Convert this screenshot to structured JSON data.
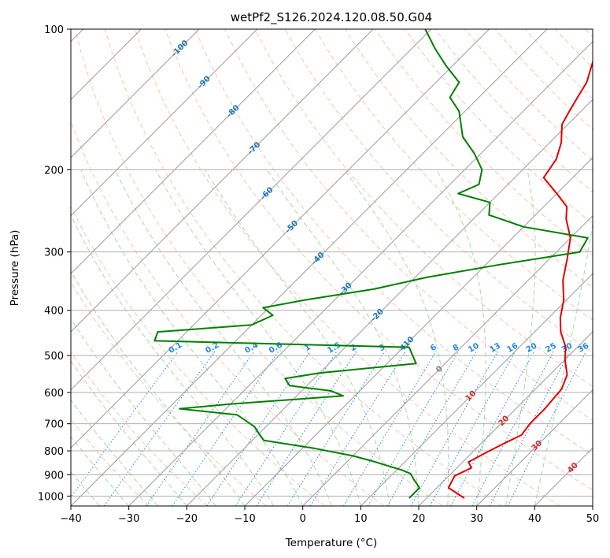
{
  "chart_data": {
    "type": "line",
    "title": "wetPf2_S126.2024.120.08.50.G04",
    "xlabel": "Temperature (°C)",
    "ylabel": "Pressure (hPa)",
    "xlim": [
      -40,
      50
    ],
    "ylim": [
      1050,
      100
    ],
    "y_scale": "log",
    "grid": true,
    "x_ticks": [
      -40,
      -30,
      -20,
      -10,
      0,
      10,
      20,
      30,
      40,
      50
    ],
    "y_ticks": [
      100,
      200,
      300,
      400,
      500,
      600,
      700,
      800,
      900,
      1000
    ],
    "series": [
      {
        "name": "",
        "color": "#e30000",
        "kind": "temperature",
        "points": [
          [
            26.5,
            1010
          ],
          [
            22,
            960
          ],
          [
            21,
            905
          ],
          [
            22.5,
            870
          ],
          [
            21,
            845
          ],
          [
            22.5,
            805
          ],
          [
            24,
            770
          ],
          [
            25.5,
            740
          ],
          [
            25,
            700
          ],
          [
            25,
            650
          ],
          [
            24.5,
            590
          ],
          [
            23,
            550
          ],
          [
            20,
            510
          ],
          [
            18,
            480
          ],
          [
            14.5,
            445
          ],
          [
            12,
            415
          ],
          [
            9.5,
            380
          ],
          [
            6,
            345
          ],
          [
            3,
            310
          ],
          [
            0,
            280
          ],
          [
            -4,
            255
          ],
          [
            -6,
            240
          ],
          [
            -10,
            225
          ],
          [
            -15,
            208
          ],
          [
            -16,
            190
          ],
          [
            -18,
            175
          ],
          [
            -21,
            160
          ],
          [
            -22,
            150
          ],
          [
            -23,
            140
          ],
          [
            -24,
            130
          ],
          [
            -27,
            115
          ],
          [
            -30,
            100
          ]
        ]
      },
      {
        "name": "",
        "color": "#008000",
        "kind": "dewpoint",
        "points": [
          [
            17,
            1010
          ],
          [
            17,
            960
          ],
          [
            14.5,
            920
          ],
          [
            13,
            895
          ],
          [
            11,
            880
          ],
          [
            4,
            840
          ],
          [
            0,
            820
          ],
          [
            -8,
            790
          ],
          [
            -18,
            760
          ],
          [
            -20,
            735
          ],
          [
            -22,
            710
          ],
          [
            -27,
            670
          ],
          [
            -38,
            650
          ],
          [
            -30,
            635
          ],
          [
            -12,
            610
          ],
          [
            -15,
            595
          ],
          [
            -23,
            580
          ],
          [
            -25,
            560
          ],
          [
            -20,
            545
          ],
          [
            -5,
            520
          ],
          [
            -9,
            480
          ],
          [
            -54,
            465
          ],
          [
            -55,
            445
          ],
          [
            -40,
            430
          ],
          [
            -38,
            410
          ],
          [
            -41,
            395
          ],
          [
            -35,
            380
          ],
          [
            -25,
            360
          ],
          [
            -18,
            340
          ],
          [
            -8,
            320
          ],
          [
            4,
            300
          ],
          [
            3,
            280
          ],
          [
            -10,
            265
          ],
          [
            -18,
            250
          ],
          [
            -20,
            235
          ],
          [
            -27,
            225
          ],
          [
            -25,
            215
          ],
          [
            -27,
            200
          ],
          [
            -31,
            185
          ],
          [
            -36,
            170
          ],
          [
            -41,
            150
          ],
          [
            -45,
            140
          ],
          [
            -46,
            130
          ],
          [
            -51,
            120
          ],
          [
            -56,
            110
          ],
          [
            -61,
            100
          ]
        ]
      }
    ],
    "isotherm_labels": [
      "-100",
      "-90",
      "-80",
      "-70",
      "-60",
      "-50",
      "-40",
      "-30",
      "-20",
      "-10",
      "0",
      "10",
      "20",
      "30",
      "40"
    ],
    "mixing_ratio_labels": [
      "0.1",
      "0.2",
      "0.4",
      "0.6",
      "1",
      "1.5",
      "2",
      "3",
      "4",
      "6",
      "8",
      "10",
      "13",
      "16",
      "20",
      "25",
      "30",
      "36"
    ],
    "colors": {
      "isotherm_cold_label": "#1f77b4",
      "isotherm_warm_label": "#d62728",
      "isotherm_zero_label": "#808080",
      "mixing_ratio": "#1e88e5",
      "dry_adiabat": "#ff9a80",
      "moist_adiabat": "#8fc88f",
      "skewed_isotherm": "#9a9a9a",
      "grid": "#b0b0b0"
    }
  }
}
